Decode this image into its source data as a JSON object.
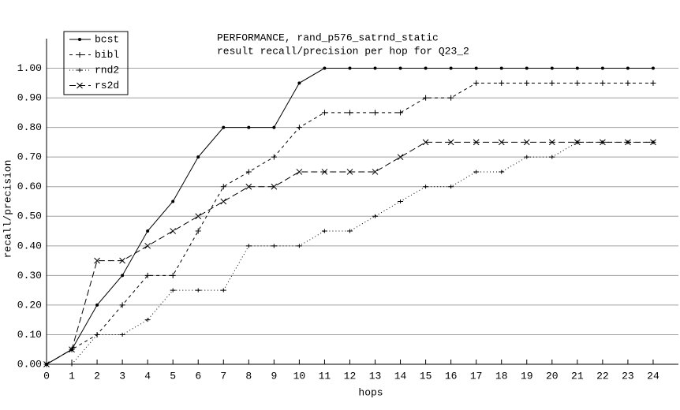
{
  "chart_data": {
    "type": "line",
    "title": "PERFORMANCE, rand_p576_satrnd_static",
    "subtitle": "result recall/precision per hop for Q23_2",
    "xlabel": "hops",
    "ylabel": "recall/precision",
    "x": [
      0,
      1,
      2,
      3,
      4,
      5,
      6,
      7,
      8,
      9,
      10,
      11,
      12,
      13,
      14,
      15,
      16,
      17,
      18,
      19,
      20,
      21,
      22,
      23,
      24
    ],
    "series": [
      {
        "name": "bcst",
        "color": "#000000",
        "style": "solid",
        "marker": "dot",
        "values": [
          0,
          0.05,
          0.2,
          0.3,
          0.45,
          0.55,
          0.7,
          0.8,
          0.8,
          0.8,
          0.95,
          1.0,
          1.0,
          1.0,
          1.0,
          1.0,
          1.0,
          1.0,
          1.0,
          1.0,
          1.0,
          1.0,
          1.0,
          1.0,
          1.0
        ]
      },
      {
        "name": "bibl",
        "color": "#000000",
        "style": "dashed",
        "marker": "plus",
        "values": [
          0,
          0.05,
          0.1,
          0.2,
          0.3,
          0.3,
          0.45,
          0.6,
          0.65,
          0.7,
          0.8,
          0.85,
          0.85,
          0.85,
          0.85,
          0.9,
          0.9,
          0.95,
          0.95,
          0.95,
          0.95,
          0.95,
          0.95,
          0.95,
          0.95
        ]
      },
      {
        "name": "rnd2",
        "color": "#000000",
        "style": "dotted",
        "marker": "tick",
        "values": [
          0,
          0,
          0.1,
          0.1,
          0.15,
          0.25,
          0.25,
          0.25,
          0.4,
          0.4,
          0.4,
          0.45,
          0.45,
          0.5,
          0.55,
          0.6,
          0.6,
          0.65,
          0.65,
          0.7,
          0.7,
          0.75,
          0.75,
          0.75,
          0.75
        ]
      },
      {
        "name": "rs2d",
        "color": "#000000",
        "style": "longdash",
        "marker": "x",
        "values": [
          0,
          0.05,
          0.35,
          0.35,
          0.4,
          0.45,
          0.5,
          0.55,
          0.6,
          0.6,
          0.65,
          0.65,
          0.65,
          0.65,
          0.7,
          0.75,
          0.75,
          0.75,
          0.75,
          0.75,
          0.75,
          0.75,
          0.75,
          0.75,
          0.75
        ]
      }
    ],
    "xlim": [
      0,
      25
    ],
    "xticks": [
      0,
      1,
      2,
      3,
      4,
      5,
      6,
      7,
      8,
      9,
      10,
      11,
      12,
      13,
      14,
      15,
      16,
      17,
      18,
      19,
      20,
      21,
      22,
      23,
      24
    ],
    "ylim": [
      0,
      1.1
    ],
    "yticks": [
      {
        "value": 0,
        "label": "0.00"
      },
      {
        "value": 0.1,
        "label": "0.10"
      },
      {
        "value": 0.2,
        "label": "0.20"
      },
      {
        "value": 0.3,
        "label": "0.30"
      },
      {
        "value": 0.4,
        "label": "0.40"
      },
      {
        "value": 0.5,
        "label": "0.50"
      },
      {
        "value": 0.6,
        "label": "0.60"
      },
      {
        "value": 0.7,
        "label": "0.70"
      },
      {
        "value": 0.8,
        "label": "0.80"
      },
      {
        "value": 0.9,
        "label": "0.90"
      },
      {
        "value": 1.0,
        "label": "1.00"
      }
    ],
    "grid": true,
    "grid_color": "#a0a0a0",
    "legend": "upper left"
  }
}
